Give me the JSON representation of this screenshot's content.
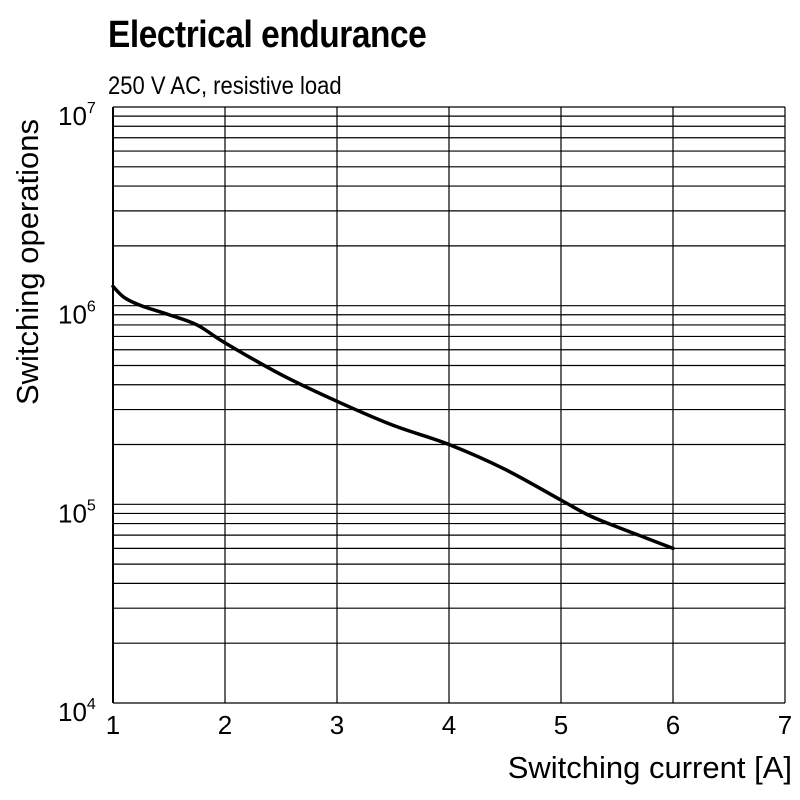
{
  "chart_data": {
    "type": "line",
    "title": "Electrical endurance",
    "subtitle": "250 V AC, resistive load",
    "xlabel": "Switching current [A]",
    "ylabel": "Switching operations",
    "xlim": [
      1,
      7
    ],
    "ylim": [
      10000,
      10000000
    ],
    "y_scale": "log",
    "grid": true,
    "x_ticks": [
      "1",
      "2",
      "3",
      "4",
      "5",
      "6",
      "7"
    ],
    "y_ticks": [
      {
        "base": "10",
        "exp": "4"
      },
      {
        "base": "10",
        "exp": "5"
      },
      {
        "base": "10",
        "exp": "6"
      },
      {
        "base": "10",
        "exp": "7"
      }
    ],
    "series": [
      {
        "color": "#000000",
        "x": [
          1.0,
          1.1,
          1.25,
          1.5,
          1.75,
          2.0,
          2.5,
          3.0,
          3.5,
          4.0,
          4.5,
          5.0,
          5.25,
          5.5,
          5.75,
          6.0
        ],
        "y": [
          1250000,
          1100000,
          1000000,
          900000,
          800000,
          650000,
          450000,
          330000,
          250000,
          200000,
          150000,
          105000,
          88000,
          77000,
          68000,
          60000
        ]
      }
    ]
  }
}
